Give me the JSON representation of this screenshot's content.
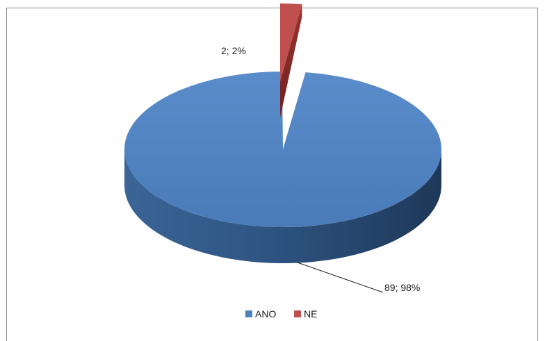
{
  "chart_data": {
    "type": "pie",
    "style": "3d-exploded",
    "title": "",
    "categories": [
      "ANO",
      "NE"
    ],
    "values": [
      89,
      2
    ],
    "percent": [
      98,
      2
    ],
    "colors": {
      "ANO": "#4f81bd",
      "NE": "#c0504d"
    },
    "data_labels": [
      "89; 98%",
      "2; 2%"
    ],
    "legend": {
      "position": "bottom",
      "entries": [
        "ANO",
        "NE"
      ]
    }
  }
}
